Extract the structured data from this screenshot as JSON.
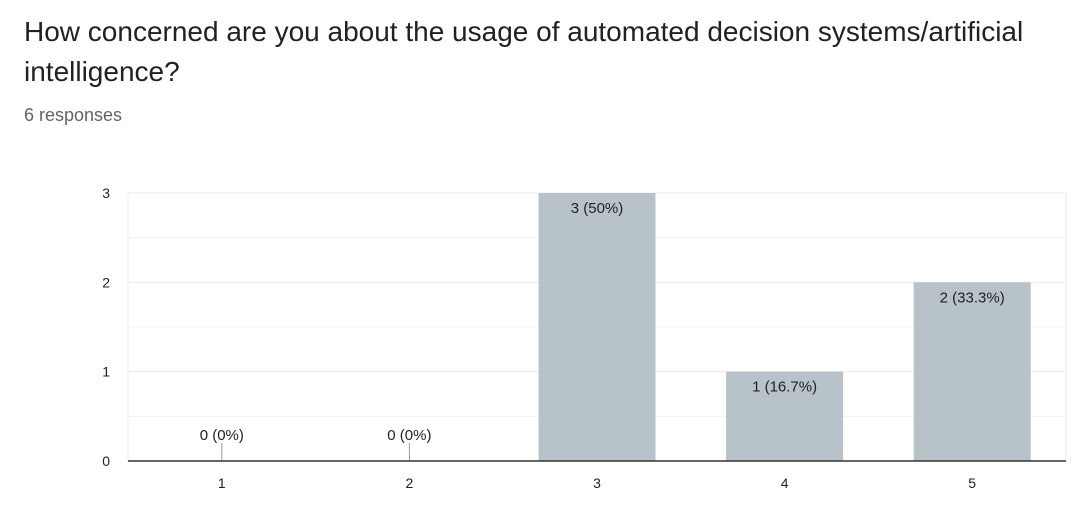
{
  "title": "How concerned are you about the usage of automated decision systems/artificial intelligence?",
  "subtitle": "6 responses",
  "colors": {
    "bar": "#b7c3c9",
    "gridline": "#ebebeb",
    "baseline": "#333333",
    "text": "#222222"
  },
  "chart_data": {
    "type": "bar",
    "title": "How concerned are you about the usage of automated decision systems/artificial intelligence?",
    "xlabel": "",
    "ylabel": "",
    "categories": [
      "1",
      "2",
      "3",
      "4",
      "5"
    ],
    "values": [
      0,
      0,
      3,
      1,
      2
    ],
    "data_labels": [
      "0 (0%)",
      "0 (0%)",
      "3 (50%)",
      "1 (16.7%)",
      "2 (33.3%)"
    ],
    "y_ticks": [
      0,
      1,
      2,
      3
    ],
    "ylim": [
      0,
      3
    ],
    "grid": true,
    "legend": "none"
  }
}
